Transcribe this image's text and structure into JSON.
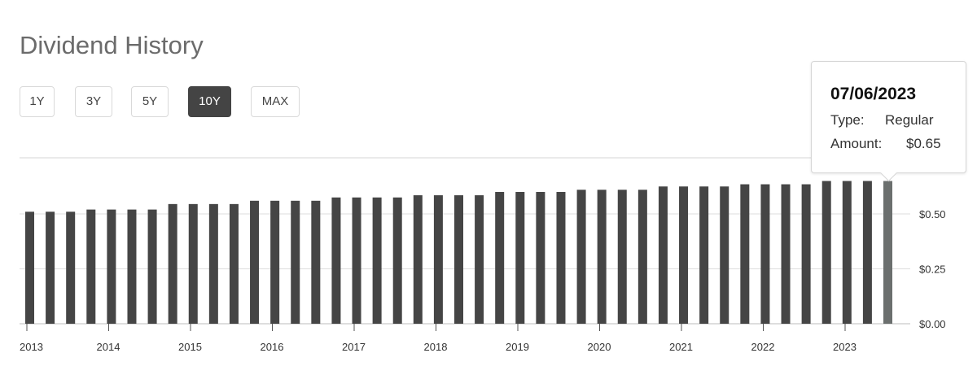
{
  "header": {
    "title": "Dividend History"
  },
  "range_buttons": [
    {
      "label": "1Y",
      "active": false
    },
    {
      "label": "3Y",
      "active": false
    },
    {
      "label": "5Y",
      "active": false
    },
    {
      "label": "10Y",
      "active": true
    },
    {
      "label": "MAX",
      "active": false
    }
  ],
  "tooltip": {
    "date": "07/06/2023",
    "type_label": "Type:",
    "type_value": "Regular",
    "amount_label": "Amount:",
    "amount_value": "$0.65"
  },
  "colors": {
    "bar": "#454545",
    "bar_highlight": "#6b6f6e",
    "active_button": "#444444",
    "grid": "#dddddd"
  },
  "chart_data": {
    "type": "bar",
    "title": "Dividend History",
    "xlabel": "",
    "ylabel": "",
    "ylim": [
      0,
      0.7
    ],
    "y_ticks": [
      {
        "value": 0.0,
        "label": "$0.00"
      },
      {
        "value": 0.25,
        "label": "$0.25"
      },
      {
        "value": 0.5,
        "label": "$0.50"
      }
    ],
    "x_ticks": [
      "2013",
      "2014",
      "2015",
      "2016",
      "2017",
      "2018",
      "2019",
      "2020",
      "2021",
      "2022",
      "2023"
    ],
    "highlighted_index": 42,
    "series": [
      {
        "values": [
          0.51,
          0.51,
          0.51,
          0.52,
          0.52,
          0.52,
          0.52,
          0.545,
          0.545,
          0.545,
          0.545,
          0.56,
          0.56,
          0.56,
          0.56,
          0.575,
          0.575,
          0.575,
          0.575,
          0.585,
          0.585,
          0.585,
          0.585,
          0.6,
          0.6,
          0.6,
          0.6,
          0.61,
          0.61,
          0.61,
          0.61,
          0.625,
          0.625,
          0.625,
          0.625,
          0.635,
          0.635,
          0.635,
          0.635,
          0.65,
          0.65,
          0.65,
          0.65
        ]
      }
    ]
  }
}
